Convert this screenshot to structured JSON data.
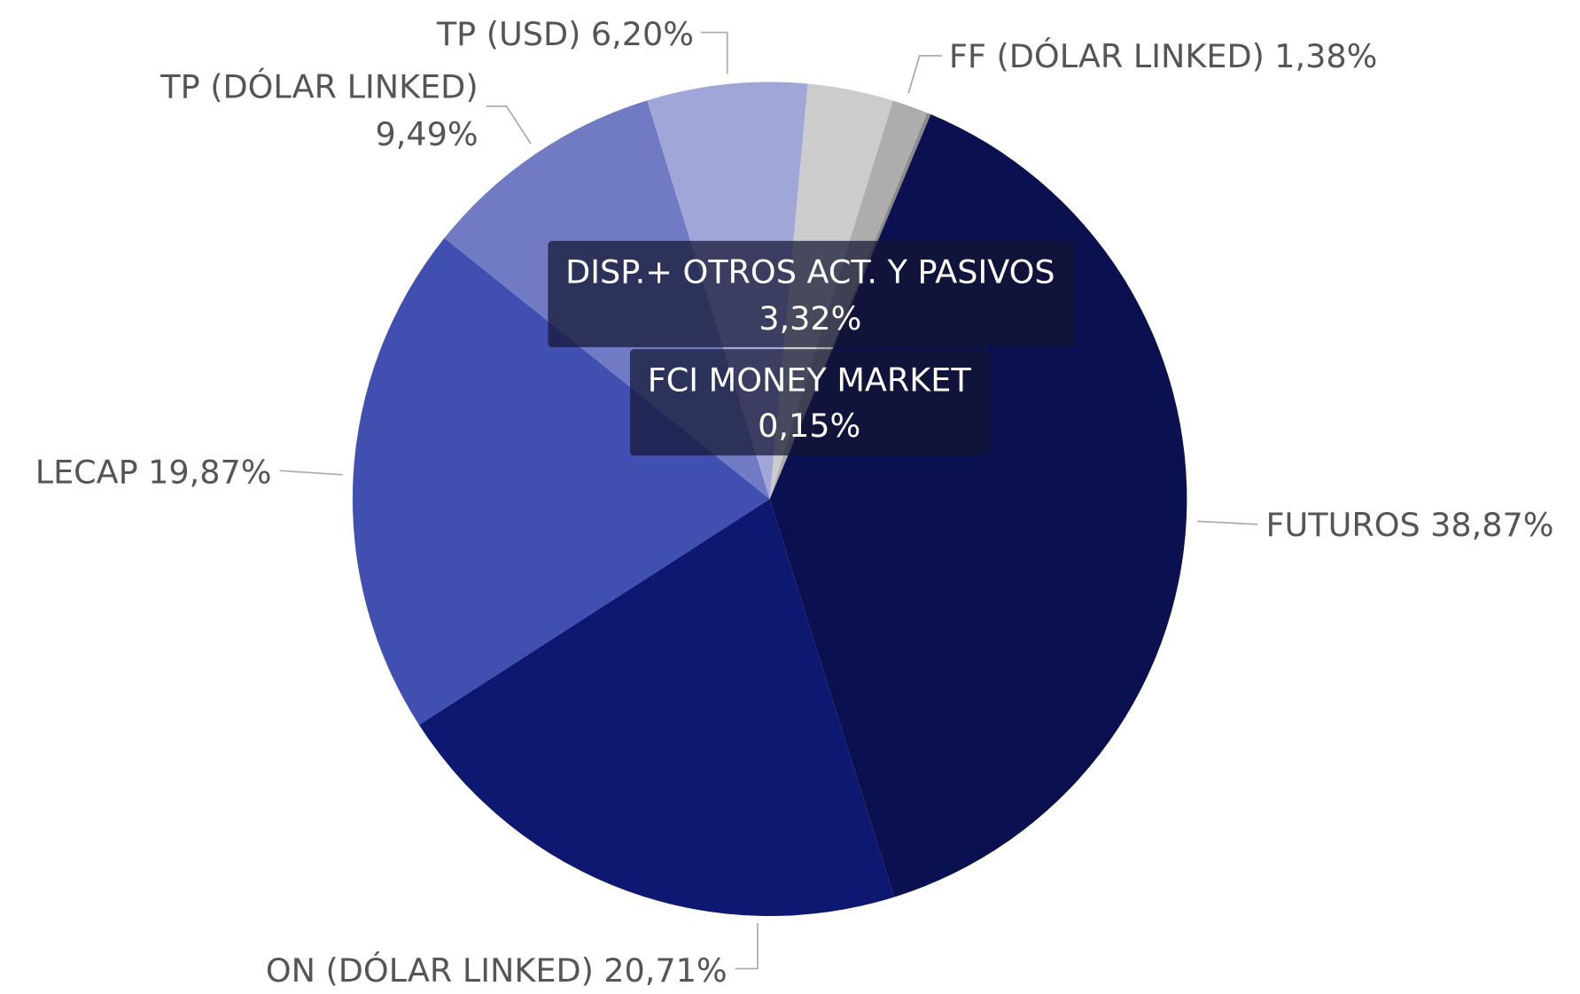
{
  "chart_data": {
    "type": "pie",
    "categories": [
      "FUTUROS",
      "ON (DÓLAR LINKED)",
      "LECAP",
      "TP (DÓLAR LINKED)",
      "TP (USD)",
      "DISP.+ OTROS ACT. Y PASIVOS",
      "FF (DÓLAR LINKED)",
      "FCI MONEY MARKET"
    ],
    "values": [
      38.87,
      20.71,
      19.87,
      9.49,
      6.2,
      3.32,
      1.38,
      0.15
    ],
    "value_labels": [
      "38,87%",
      "20,71%",
      "19,87%",
      "9,49%",
      "6,20%",
      "3,32%",
      "1,38%",
      "0,15%"
    ],
    "colors": [
      "#0b1150",
      "#0f1870",
      "#4150b0",
      "#717bc4",
      "#a0a6d8",
      "#cccccc",
      "#adadad",
      "#8a8a8a"
    ]
  }
}
